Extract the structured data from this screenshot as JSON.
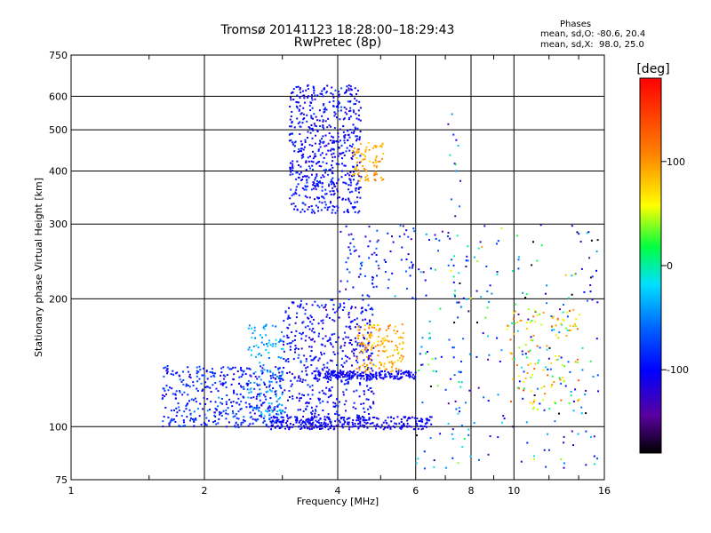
{
  "chart_data": {
    "type": "scatter",
    "title": "Tromsø 20141123 18:28:00–18:29:43",
    "subtitle": "RwPretec (8p)",
    "xlabel": "Frequency [MHz]",
    "ylabel": "Stationary phase Virtual Height [km]",
    "x_scale": "log",
    "y_scale": "log",
    "xlim": [
      1,
      16
    ],
    "ylim": [
      75,
      750
    ],
    "x_ticks": [
      1,
      2,
      4,
      6,
      8,
      10,
      16
    ],
    "y_ticks": [
      75,
      100,
      200,
      300,
      400,
      500,
      600,
      750
    ],
    "grid": true,
    "stats": {
      "heading": "Phases",
      "o_line": "mean, sd,O: -80.6, 20.4",
      "x_line": "mean, sd,X:  98.0, 25.0"
    },
    "colorbar": {
      "label": "[deg]",
      "range": [
        -180,
        180
      ],
      "ticks": [
        100,
        0,
        -100
      ]
    },
    "clusters": [
      {
        "name": "",
        "fmin": 1.6,
        "fmax": 3.0,
        "hmin": 100,
        "hmax": 140,
        "count": 420,
        "phase": -90,
        "sd": 18
      },
      {
        "name": "",
        "fmin": 2.5,
        "fmax": 3.0,
        "hmin": 105,
        "hmax": 175,
        "count": 120,
        "phase": -40,
        "sd": 12
      },
      {
        "name": "",
        "fmin": 3.0,
        "fmax": 4.8,
        "hmin": 100,
        "hmax": 200,
        "count": 500,
        "phase": -100,
        "sd": 15
      },
      {
        "name": "",
        "fmin": 2.8,
        "fmax": 6.5,
        "hmin": 99,
        "hmax": 106,
        "count": 280,
        "phase": -105,
        "sd": 8
      },
      {
        "name": "",
        "fmin": 3.5,
        "fmax": 6.0,
        "hmin": 130,
        "hmax": 136,
        "count": 200,
        "phase": -105,
        "sd": 8
      },
      {
        "name": "",
        "fmin": 4.4,
        "fmax": 5.6,
        "hmin": 135,
        "hmax": 175,
        "count": 140,
        "phase": 90,
        "sd": 15
      },
      {
        "name": "",
        "fmin": 3.1,
        "fmax": 4.5,
        "hmin": 320,
        "hmax": 640,
        "count": 600,
        "phase": -100,
        "sd": 14
      },
      {
        "name": "",
        "fmin": 4.3,
        "fmax": 5.1,
        "hmin": 380,
        "hmax": 470,
        "count": 80,
        "phase": 95,
        "sd": 12
      },
      {
        "name": "",
        "fmin": 4.0,
        "fmax": 6.0,
        "hmin": 200,
        "hmax": 300,
        "count": 90,
        "phase": -90,
        "sd": 25
      },
      {
        "name": "",
        "fmin": 6.0,
        "fmax": 15.5,
        "hmin": 80,
        "hmax": 300,
        "count": 260,
        "phase": -70,
        "sd": 60
      },
      {
        "name": "",
        "fmin": 7.0,
        "fmax": 7.6,
        "hmin": 80,
        "hmax": 580,
        "count": 40,
        "phase": -60,
        "sd": 50
      },
      {
        "name": "",
        "fmin": 9.5,
        "fmax": 14.0,
        "hmin": 110,
        "hmax": 190,
        "count": 120,
        "phase": 80,
        "sd": 35
      }
    ]
  }
}
